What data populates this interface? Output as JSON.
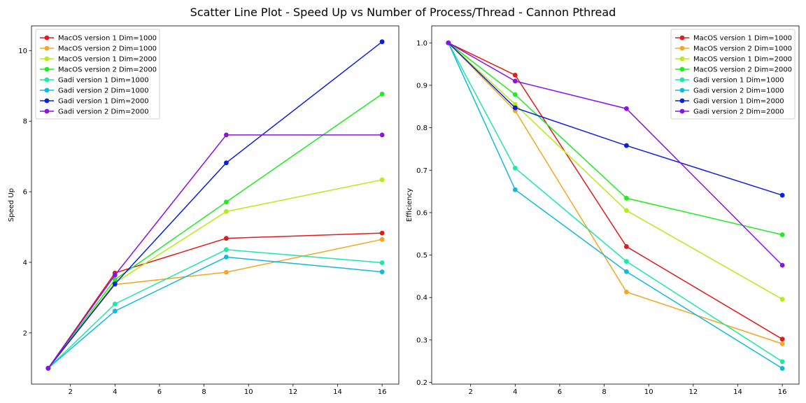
{
  "figure": {
    "title": "Scatter Line Plot - Speed Up vs Number of Process/Thread - Cannon Pthread"
  },
  "chart_data": [
    {
      "type": "line",
      "title": "",
      "xlabel": "",
      "ylabel": "Speed Up",
      "xlim": [
        0.25,
        16.75
      ],
      "ylim": [
        0.55,
        10.7
      ],
      "xticks": [
        2,
        4,
        6,
        8,
        10,
        12,
        14,
        16
      ],
      "yticks": [
        2,
        4,
        6,
        8,
        10
      ],
      "grid": false,
      "legend_position": "upper left",
      "x": [
        1,
        4,
        9,
        16
      ],
      "series": [
        {
          "name": "MacOS version 1 Dim=1000",
          "color": "#e31a1c",
          "values": [
            1.0,
            3.7,
            4.68,
            4.83
          ]
        },
        {
          "name": "MacOS version 2 Dim=1000",
          "color": "#f5a623",
          "values": [
            1.0,
            3.37,
            3.72,
            4.65
          ]
        },
        {
          "name": "MacOS version 1 Dim=2000",
          "color": "#b6ec17",
          "values": [
            1.0,
            3.42,
            5.44,
            6.34
          ]
        },
        {
          "name": "MacOS version 2 Dim=2000",
          "color": "#21ec21",
          "values": [
            1.0,
            3.51,
            5.71,
            8.77
          ]
        },
        {
          "name": "Gadi version 1 Dim=1000",
          "color": "#1de8a4",
          "values": [
            1.0,
            2.82,
            4.36,
            3.99
          ]
        },
        {
          "name": "Gadi version 2 Dim=1000",
          "color": "#13b8e0",
          "values": [
            1.0,
            2.62,
            4.15,
            3.73
          ]
        },
        {
          "name": "Gadi version 1 Dim=2000",
          "color": "#0b1fe0",
          "values": [
            1.0,
            3.39,
            6.82,
            10.25
          ]
        },
        {
          "name": "Gadi version 2 Dim=2000",
          "color": "#8a12e8",
          "values": [
            1.0,
            3.64,
            7.61,
            7.61
          ]
        }
      ]
    },
    {
      "type": "line",
      "title": "",
      "xlabel": "",
      "ylabel": "Efficiency",
      "xlim": [
        0.25,
        16.75
      ],
      "ylim": [
        0.196,
        1.04
      ],
      "xticks": [
        2,
        4,
        6,
        8,
        10,
        12,
        14,
        16
      ],
      "yticks": [
        0.2,
        0.3,
        0.4,
        0.5,
        0.6,
        0.7,
        0.8,
        0.9,
        1.0
      ],
      "ytick_labels": [
        "0.2",
        "0.3",
        "0.4",
        "0.5",
        "0.6",
        "0.7",
        "0.8",
        "0.9",
        "1.0"
      ],
      "grid": false,
      "legend_position": "upper right",
      "x": [
        1,
        4,
        9,
        16
      ],
      "series": [
        {
          "name": "MacOS version 1 Dim=1000",
          "color": "#e31a1c",
          "values": [
            1.0,
            0.924,
            0.52,
            0.302
          ]
        },
        {
          "name": "MacOS version 2 Dim=1000",
          "color": "#f5a623",
          "values": [
            1.0,
            0.84,
            0.413,
            0.291
          ]
        },
        {
          "name": "MacOS version 1 Dim=2000",
          "color": "#b6ec17",
          "values": [
            1.0,
            0.855,
            0.605,
            0.396
          ]
        },
        {
          "name": "MacOS version 2 Dim=2000",
          "color": "#21ec21",
          "values": [
            1.0,
            0.878,
            0.634,
            0.548
          ]
        },
        {
          "name": "Gadi version 1 Dim=1000",
          "color": "#1de8a4",
          "values": [
            1.0,
            0.705,
            0.485,
            0.249
          ]
        },
        {
          "name": "Gadi version 2 Dim=1000",
          "color": "#13b8e0",
          "values": [
            1.0,
            0.654,
            0.461,
            0.233
          ]
        },
        {
          "name": "Gadi version 1 Dim=2000",
          "color": "#0b1fe0",
          "values": [
            1.0,
            0.847,
            0.758,
            0.641
          ]
        },
        {
          "name": "Gadi version 2 Dim=2000",
          "color": "#8a12e8",
          "values": [
            1.0,
            0.91,
            0.845,
            0.476
          ]
        }
      ]
    }
  ]
}
